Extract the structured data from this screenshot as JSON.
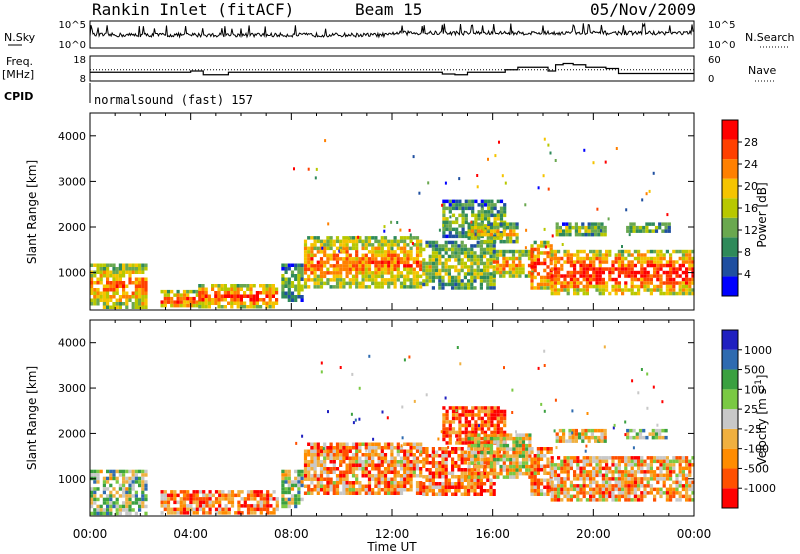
{
  "header": {
    "station": "Rankin Inlet (fitACF)",
    "beam": "Beam 15",
    "date": "05/Nov/2009"
  },
  "cpid": {
    "label": "CPID",
    "program": "normalsound (fast) 157"
  },
  "colors": {
    "power": [
      "#0000ff",
      "#1f4fa0",
      "#2f8a5a",
      "#6aa84f",
      "#b8c800",
      "#f5c400",
      "#ff8000",
      "#ff4000",
      "#ff0000"
    ],
    "velocity": [
      "#ff0000",
      "#ff5000",
      "#ff8c00",
      "#f0b040",
      "#c8c8c8",
      "#7ac943",
      "#3aa040",
      "#2f6bb0",
      "#2020c0"
    ]
  },
  "chart_data": [
    {
      "type": "line",
      "panel": "noise",
      "left_label": "N.Sky",
      "right_label": "N.Search",
      "left_ticks": [
        "10^5",
        "10^0"
      ],
      "right_ticks": [
        "10^5",
        "10^0"
      ]
    },
    {
      "type": "line",
      "panel": "frequency",
      "left_label": "Freq.",
      "left_unit": "[MHz]",
      "right_label": "Nave",
      "left_ticks": [
        "18",
        "8"
      ],
      "right_ticks": [
        "60",
        "0"
      ],
      "x": [
        0,
        0.25,
        0.5,
        1.0,
        1.5,
        2.0,
        2.5,
        3.0,
        4.0,
        4.5,
        5.0,
        5.5,
        6.0,
        7.0,
        8.0,
        9.0,
        10.0,
        11.0,
        12.0,
        13.0,
        14.0,
        14.5,
        15.0,
        15.5,
        16.0,
        16.5,
        17.0,
        17.7,
        18.2,
        18.5,
        18.8,
        19.2,
        19.7,
        20.5,
        21.0,
        22.0,
        23.0,
        24.0
      ],
      "freq": [
        11.5,
        11.5,
        11.5,
        11.5,
        11.5,
        11.5,
        11.5,
        11.5,
        12.0,
        10.5,
        10.5,
        11.5,
        11.5,
        11.5,
        11.5,
        11.5,
        11.5,
        11.5,
        11.5,
        11.5,
        10.8,
        10.5,
        11.5,
        11.5,
        11.5,
        12.5,
        13.5,
        13.5,
        12.0,
        14.5,
        15.0,
        14.5,
        13.5,
        13.0,
        11.0,
        11.0,
        11.0,
        11.0
      ],
      "nave_marker": 12.5
    },
    {
      "type": "heatmap",
      "panel": "power",
      "xlabel": "Time UT",
      "ylabel": "Slant Range [km]",
      "xlim": [
        0,
        24
      ],
      "ylim": [
        180,
        4500
      ],
      "x_ticks": [
        "00:00",
        "04:00",
        "08:00",
        "12:00",
        "16:00",
        "20:00",
        "00:00"
      ],
      "y_ticks": [
        1000,
        2000,
        3000,
        4000
      ],
      "colorbar": {
        "label": "Power [dB]",
        "ticks": [
          "28",
          "24",
          "20",
          "16",
          "12",
          "8",
          "4"
        ],
        "tick_values": [
          28,
          24,
          20,
          16,
          12,
          8,
          4
        ],
        "range": [
          0,
          32
        ]
      },
      "echo_regions": [
        {
          "t0": 0.0,
          "t1": 2.2,
          "r0": 250,
          "r1": 1200,
          "level": 0.75
        },
        {
          "t0": 2.8,
          "t1": 4.2,
          "r0": 250,
          "r1": 620,
          "level": 0.85
        },
        {
          "t0": 4.3,
          "t1": 7.4,
          "r0": 250,
          "r1": 750,
          "level": 0.85
        },
        {
          "t0": 7.6,
          "t1": 8.4,
          "r0": 400,
          "r1": 1200,
          "level": 0.4
        },
        {
          "t0": 8.5,
          "t1": 13.2,
          "r0": 700,
          "r1": 1800,
          "level": 0.75
        },
        {
          "t0": 13.2,
          "t1": 16.0,
          "r0": 650,
          "r1": 1700,
          "level": 0.5
        },
        {
          "t0": 14.0,
          "t1": 16.5,
          "r0": 1800,
          "r1": 2600,
          "level": 0.4
        },
        {
          "t0": 15.0,
          "t1": 17.0,
          "r0": 1700,
          "r1": 2100,
          "level": 0.6
        },
        {
          "t0": 16.0,
          "t1": 17.6,
          "r0": 900,
          "r1": 1500,
          "level": 0.7
        },
        {
          "t0": 17.5,
          "t1": 18.3,
          "r0": 650,
          "r1": 1700,
          "level": 0.9
        },
        {
          "t0": 18.3,
          "t1": 24.0,
          "r0": 550,
          "r1": 1500,
          "level": 0.9
        },
        {
          "t0": 18.5,
          "t1": 20.5,
          "r0": 1850,
          "r1": 2100,
          "level": 0.5
        },
        {
          "t0": 21.3,
          "t1": 23.0,
          "r0": 1900,
          "r1": 2100,
          "level": 0.4
        }
      ]
    },
    {
      "type": "heatmap",
      "panel": "velocity",
      "xlabel": "Time UT",
      "ylabel": "Slant Range [km]",
      "xlim": [
        0,
        24
      ],
      "ylim": [
        180,
        4500
      ],
      "x_ticks": [
        "00:00",
        "04:00",
        "08:00",
        "12:00",
        "16:00",
        "20:00",
        "00:00"
      ],
      "y_ticks": [
        1000,
        2000,
        3000,
        4000
      ],
      "colorbar": {
        "label": "Velocity [m s^-1]",
        "ticks": [
          "1000",
          "500",
          "100",
          "25",
          "-25",
          "-100",
          "-500",
          "-1000"
        ]
      },
      "echo_regions": [
        {
          "t0": 0.0,
          "t1": 2.2,
          "r0": 250,
          "r1": 1200,
          "level": 0.6
        },
        {
          "t0": 2.8,
          "t1": 7.4,
          "r0": 250,
          "r1": 750,
          "level": 0.25
        },
        {
          "t0": 7.6,
          "t1": 8.4,
          "r0": 400,
          "r1": 1200,
          "level": 0.55
        },
        {
          "t0": 8.5,
          "t1": 13.2,
          "r0": 700,
          "r1": 1800,
          "level": 0.3
        },
        {
          "t0": 13.2,
          "t1": 16.0,
          "r0": 650,
          "r1": 1700,
          "level": 0.25
        },
        {
          "t0": 14.0,
          "t1": 16.5,
          "r0": 1800,
          "r1": 2600,
          "level": 0.15
        },
        {
          "t0": 15.0,
          "t1": 17.5,
          "r0": 1000,
          "r1": 2000,
          "level": 0.45
        },
        {
          "t0": 17.5,
          "t1": 18.3,
          "r0": 650,
          "r1": 1700,
          "level": 0.3
        },
        {
          "t0": 18.3,
          "t1": 24.0,
          "r0": 550,
          "r1": 1500,
          "level": 0.35
        },
        {
          "t0": 18.5,
          "t1": 20.5,
          "r0": 1850,
          "r1": 2100,
          "level": 0.45
        },
        {
          "t0": 21.3,
          "t1": 23.0,
          "r0": 1900,
          "r1": 2100,
          "level": 0.6
        }
      ]
    }
  ]
}
